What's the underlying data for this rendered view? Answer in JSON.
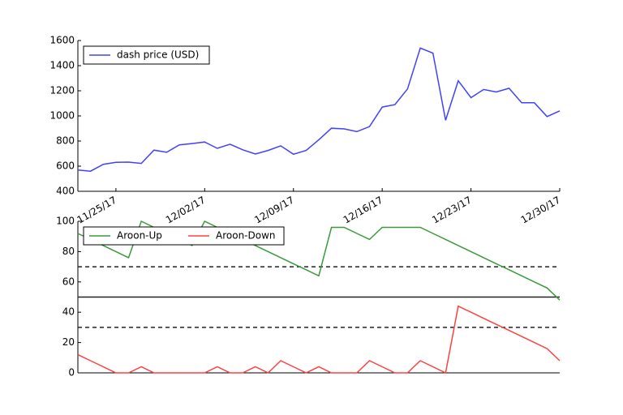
{
  "chart_data": [
    {
      "type": "line",
      "x": [
        "11/22/17",
        "11/23/17",
        "11/24/17",
        "11/25/17",
        "11/26/17",
        "11/27/17",
        "11/28/17",
        "11/29/17",
        "11/30/17",
        "12/01/17",
        "12/02/17",
        "12/03/17",
        "12/04/17",
        "12/05/17",
        "12/06/17",
        "12/07/17",
        "12/08/17",
        "12/09/17",
        "12/10/17",
        "12/11/17",
        "12/12/17",
        "12/13/17",
        "12/14/17",
        "12/15/17",
        "12/16/17",
        "12/17/17",
        "12/18/17",
        "12/19/17",
        "12/20/17",
        "12/21/17",
        "12/22/17",
        "12/23/17",
        "12/24/17",
        "12/25/17",
        "12/26/17",
        "12/27/17",
        "12/28/17",
        "12/29/17",
        "12/30/17"
      ],
      "series": [
        {
          "name": "dash price (USD)",
          "color": "#4040ff",
          "values": [
            570,
            560,
            615,
            630,
            632,
            622,
            728,
            710,
            770,
            780,
            792,
            742,
            775,
            730,
            697,
            725,
            762,
            695,
            725,
            810,
            902,
            897,
            875,
            915,
            1070,
            1090,
            1215,
            1540,
            1500,
            965,
            1280,
            1145,
            1210,
            1190,
            1220,
            1105,
            1105,
            995,
            1040
          ]
        }
      ],
      "xlim": [
        "11/22/17",
        "12/30/17"
      ],
      "xticks": [
        "11/25/17",
        "12/02/17",
        "12/09/17",
        "12/16/17",
        "12/23/17",
        "12/30/17"
      ],
      "ylim": [
        400,
        1600
      ],
      "yticks": [
        400,
        600,
        800,
        1000,
        1200,
        1400,
        1600
      ],
      "legend": "upper left"
    },
    {
      "type": "line",
      "x": [
        "11/22/17",
        "11/23/17",
        "11/24/17",
        "11/25/17",
        "11/26/17",
        "11/27/17",
        "11/28/17",
        "11/29/17",
        "11/30/17",
        "12/01/17",
        "12/02/17",
        "12/03/17",
        "12/04/17",
        "12/05/17",
        "12/06/17",
        "12/07/17",
        "12/08/17",
        "12/09/17",
        "12/10/17",
        "12/11/17",
        "12/12/17",
        "12/13/17",
        "12/14/17",
        "12/15/17",
        "12/16/17",
        "12/17/17",
        "12/18/17",
        "12/19/17",
        "12/20/17",
        "12/21/17",
        "12/22/17",
        "12/23/17",
        "12/24/17",
        "12/25/17",
        "12/26/17",
        "12/27/17",
        "12/28/17",
        "12/29/17",
        "12/30/17"
      ],
      "series": [
        {
          "name": "Aroon-Up",
          "color": "#3a9a3a",
          "values": [
            92,
            88,
            84,
            80,
            76,
            100,
            96,
            92,
            88,
            84,
            100,
            96,
            92,
            88,
            84,
            80,
            76,
            72,
            68,
            64,
            96,
            96,
            92,
            88,
            96,
            96,
            96,
            96,
            92,
            88,
            84,
            80,
            76,
            72,
            68,
            64,
            60,
            56,
            48
          ]
        },
        {
          "name": "Aroon-Down",
          "color": "#ff4040",
          "values": [
            12,
            8,
            4,
            0,
            0,
            4,
            0,
            0,
            0,
            0,
            0,
            4,
            0,
            0,
            4,
            0,
            8,
            4,
            0,
            4,
            0,
            0,
            0,
            8,
            4,
            0,
            0,
            8,
            4,
            0,
            44,
            40,
            36,
            32,
            28,
            24,
            20,
            16,
            8
          ]
        }
      ],
      "xlim": [
        "11/22/17",
        "12/30/17"
      ],
      "ylim": [
        0,
        100
      ],
      "yticks": [
        0,
        20,
        40,
        60,
        80,
        100
      ],
      "reference_lines": [
        {
          "value": 70,
          "style": "dashed"
        },
        {
          "value": 50,
          "style": "solid"
        },
        {
          "value": 30,
          "style": "dashed"
        }
      ],
      "legend": "upper left"
    }
  ]
}
